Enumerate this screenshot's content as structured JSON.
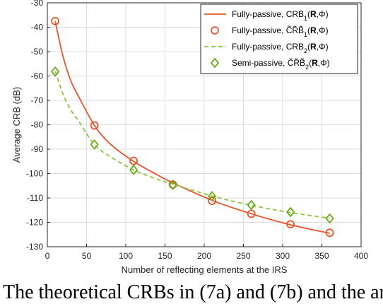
{
  "chart_data": {
    "type": "line",
    "xlabel": "Number of reflecting elements at the IRS",
    "ylabel": "Average CRB (dB)",
    "xlim": [
      0,
      400
    ],
    "ylim": [
      -130,
      -30
    ],
    "xticks": [
      0,
      50,
      100,
      150,
      200,
      250,
      300,
      350,
      400
    ],
    "yticks": [
      -30,
      -40,
      -50,
      -60,
      -70,
      -80,
      -90,
      -100,
      -110,
      -120,
      -130
    ],
    "grid": true,
    "legend_position": "top-right",
    "series": [
      {
        "name": "Fully-passive, CRB1(R,Φ)",
        "style": "solid-line",
        "color": "#e8542c",
        "x": [
          10,
          20,
          30,
          40,
          60,
          80,
          110,
          140,
          160,
          210,
          260,
          310,
          360
        ],
        "y": [
          -37.5,
          -52,
          -62,
          -68.5,
          -80.2,
          -87.8,
          -95,
          -100.5,
          -103.8,
          -111,
          -116.5,
          -121,
          -124.5
        ]
      },
      {
        "name": "Fully-passive, C̃R̃B̃1(R,Φ)",
        "style": "circle-markers",
        "color": "#e8542c",
        "x": [
          10,
          60,
          110,
          160,
          210,
          260,
          310,
          360
        ],
        "y": [
          -37.5,
          -80.3,
          -94.8,
          -104.5,
          -111.2,
          -116.5,
          -120.8,
          -124.3
        ]
      },
      {
        "name": "Fully-passive, CRB2(R,Φ)",
        "style": "dashed-line",
        "color": "#8cc63e",
        "x": [
          10,
          20,
          30,
          40,
          60,
          80,
          110,
          140,
          160,
          210,
          260,
          310,
          360
        ],
        "y": [
          -58,
          -67.5,
          -74,
          -78.5,
          -88.2,
          -93,
          -98.5,
          -102.3,
          -104.3,
          -109.2,
          -113,
          -116,
          -118.3
        ]
      },
      {
        "name": "Semi-passive, C̃R̃B̃2(R,Φ)",
        "style": "diamond-markers",
        "color": "#6aaa1e",
        "x": [
          10,
          60,
          110,
          160,
          210,
          260,
          310,
          360
        ],
        "y": [
          -58.2,
          -88.1,
          -98.5,
          -104.6,
          -109.3,
          -112.9,
          -115.8,
          -118.4
        ]
      }
    ],
    "legend": [
      {
        "prefix": "Fully-passive, ",
        "base": "CRB",
        "tilde": false,
        "sub": "1",
        "args": "(",
        "bold": "R",
        "rest": ",Φ)"
      },
      {
        "prefix": "Fully-passive, ",
        "base": "C̃R̃B̃",
        "tilde": true,
        "sub": "1",
        "args": "(",
        "bold": "R",
        "rest": ",Φ)"
      },
      {
        "prefix": "Fully-passive, ",
        "base": "CRB",
        "tilde": false,
        "sub": "2",
        "args": "(",
        "bold": "R",
        "rest": ",Φ)"
      },
      {
        "prefix": "Semi-passive, ",
        "base": "C̃R̃B̃",
        "tilde": true,
        "sub": "2",
        "args": "(",
        "bold": "R",
        "rest": ",Φ)"
      }
    ]
  },
  "caption": "The theoretical CRBs in (7a) and (7b) and the ar"
}
